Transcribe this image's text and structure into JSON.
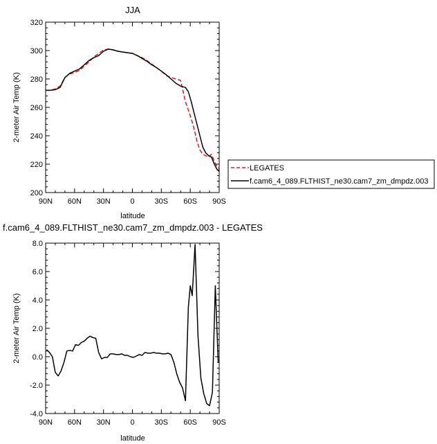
{
  "chart_data": [
    {
      "type": "line",
      "title": "JJA",
      "xlabel": "latitude",
      "ylabel": "2-meter Air Temp (K)",
      "xlim": [
        90,
        -90
      ],
      "ylim": [
        200,
        320
      ],
      "xticks": [
        90,
        60,
        30,
        0,
        -30,
        -60,
        -90
      ],
      "xtick_labels": [
        "90N",
        "60N",
        "30N",
        "0",
        "30S",
        "60S",
        "90S"
      ],
      "yticks": [
        200,
        220,
        240,
        260,
        280,
        300,
        320
      ],
      "ytick_labels": [
        "200",
        "220",
        "240",
        "260",
        "280",
        "300",
        "320"
      ],
      "grid": false,
      "legend_position": "right",
      "series": [
        {
          "name": "LEGATES",
          "color": "#e41a1c",
          "dash": "dashed",
          "x": [
            90,
            85,
            80,
            75,
            70,
            65,
            60,
            55,
            50,
            45,
            40,
            35,
            30,
            25,
            20,
            15,
            10,
            5,
            0,
            -5,
            -10,
            -15,
            -20,
            -25,
            -30,
            -35,
            -40,
            -45,
            -50,
            -55,
            -58,
            -61,
            -64,
            -67,
            -70,
            -73,
            -76,
            -79,
            -82,
            -85,
            -88,
            -90
          ],
          "y": [
            272,
            272,
            273,
            275,
            281,
            283.5,
            284.5,
            286,
            289,
            292,
            295.5,
            298,
            300.5,
            301,
            300.5,
            299.5,
            299,
            298.5,
            298,
            296.5,
            295,
            293,
            290.5,
            288,
            285.5,
            282.5,
            281,
            280,
            279,
            264,
            258,
            252,
            245,
            236,
            230,
            227,
            226,
            225,
            227,
            222,
            218,
            217
          ]
        },
        {
          "name": "f.cam6_4_089.FLTHIST_ne30.cam7_zm_dmpdz.003",
          "color": "#000000",
          "dash": "solid",
          "x": [
            90,
            85,
            80,
            75,
            70,
            65,
            60,
            55,
            50,
            45,
            40,
            35,
            30,
            25,
            20,
            15,
            10,
            5,
            0,
            -5,
            -10,
            -15,
            -20,
            -25,
            -30,
            -35,
            -40,
            -45,
            -50,
            -55,
            -58,
            -61,
            -64,
            -67,
            -70,
            -73,
            -76,
            -79,
            -82,
            -85,
            -88,
            -90
          ],
          "y": [
            272,
            272,
            272.5,
            274,
            281,
            284,
            285.5,
            287,
            290,
            293,
            295,
            296.5,
            299.5,
            301,
            300.5,
            299.5,
            299,
            298.5,
            298,
            296.5,
            294.5,
            292.5,
            290,
            288,
            285.5,
            283,
            280,
            277,
            275,
            274,
            271,
            264,
            256,
            248,
            240,
            232,
            228,
            226,
            225,
            220,
            216,
            215
          ]
        }
      ]
    },
    {
      "type": "line",
      "title": "f.cam6_4_089.FLTHIST_ne30.cam7_zm_dmpdz.003 - LEGATES",
      "xlabel": "latitude",
      "ylabel": "2-meter Air Temp (K)",
      "xlim": [
        90,
        -90
      ],
      "ylim": [
        -4,
        8
      ],
      "xticks": [
        90,
        60,
        30,
        0,
        -30,
        -60,
        -90
      ],
      "xtick_labels": [
        "90N",
        "60N",
        "30N",
        "0",
        "30S",
        "60S",
        "90S"
      ],
      "yticks": [
        -4,
        -2,
        0,
        2,
        4,
        6,
        8
      ],
      "ytick_labels": [
        "-4.0",
        "-2.0",
        "0.0",
        "2.0",
        "4.0",
        "6.0",
        "8.0"
      ],
      "grid": false,
      "series": [
        {
          "color": "#000000",
          "dash": "solid",
          "x": [
            89,
            86,
            83,
            80,
            77,
            74,
            71,
            68,
            65,
            62,
            59,
            56,
            53,
            50,
            47,
            44,
            41,
            38,
            35,
            32,
            29,
            26,
            23,
            20,
            17,
            14,
            11,
            8,
            5,
            2,
            -1,
            -4,
            -7,
            -10,
            -13,
            -16,
            -19,
            -22,
            -25,
            -28,
            -31,
            -34,
            -37,
            -40,
            -43,
            -46,
            -49,
            -52,
            -55,
            -58,
            -60,
            -62,
            -65,
            -68,
            -71,
            -74,
            -77,
            -80,
            -83,
            -86,
            -89
          ],
          "y": [
            0.5,
            0.3,
            0,
            -1.1,
            -1.35,
            -1.0,
            -0.4,
            0.4,
            0.45,
            0.4,
            0.85,
            0.8,
            1.0,
            1.1,
            1.3,
            1.45,
            1.35,
            1.3,
            0.3,
            -0.15,
            -0.05,
            -0.05,
            0.2,
            0.2,
            0.15,
            0.15,
            0.2,
            0.1,
            0.1,
            0.0,
            -0.05,
            0.05,
            0.15,
            0.1,
            0.3,
            0.25,
            0.25,
            0.3,
            0.25,
            0.25,
            0.2,
            0.2,
            0.25,
            0.15,
            -0.4,
            -1.2,
            -1.8,
            -2.2,
            -3.1,
            3.5,
            5.0,
            4.3,
            7.9,
            1.5,
            -1.5,
            -2.6,
            -3.3,
            -3.45,
            -2.5,
            5.0,
            -0.4
          ]
        }
      ]
    }
  ]
}
